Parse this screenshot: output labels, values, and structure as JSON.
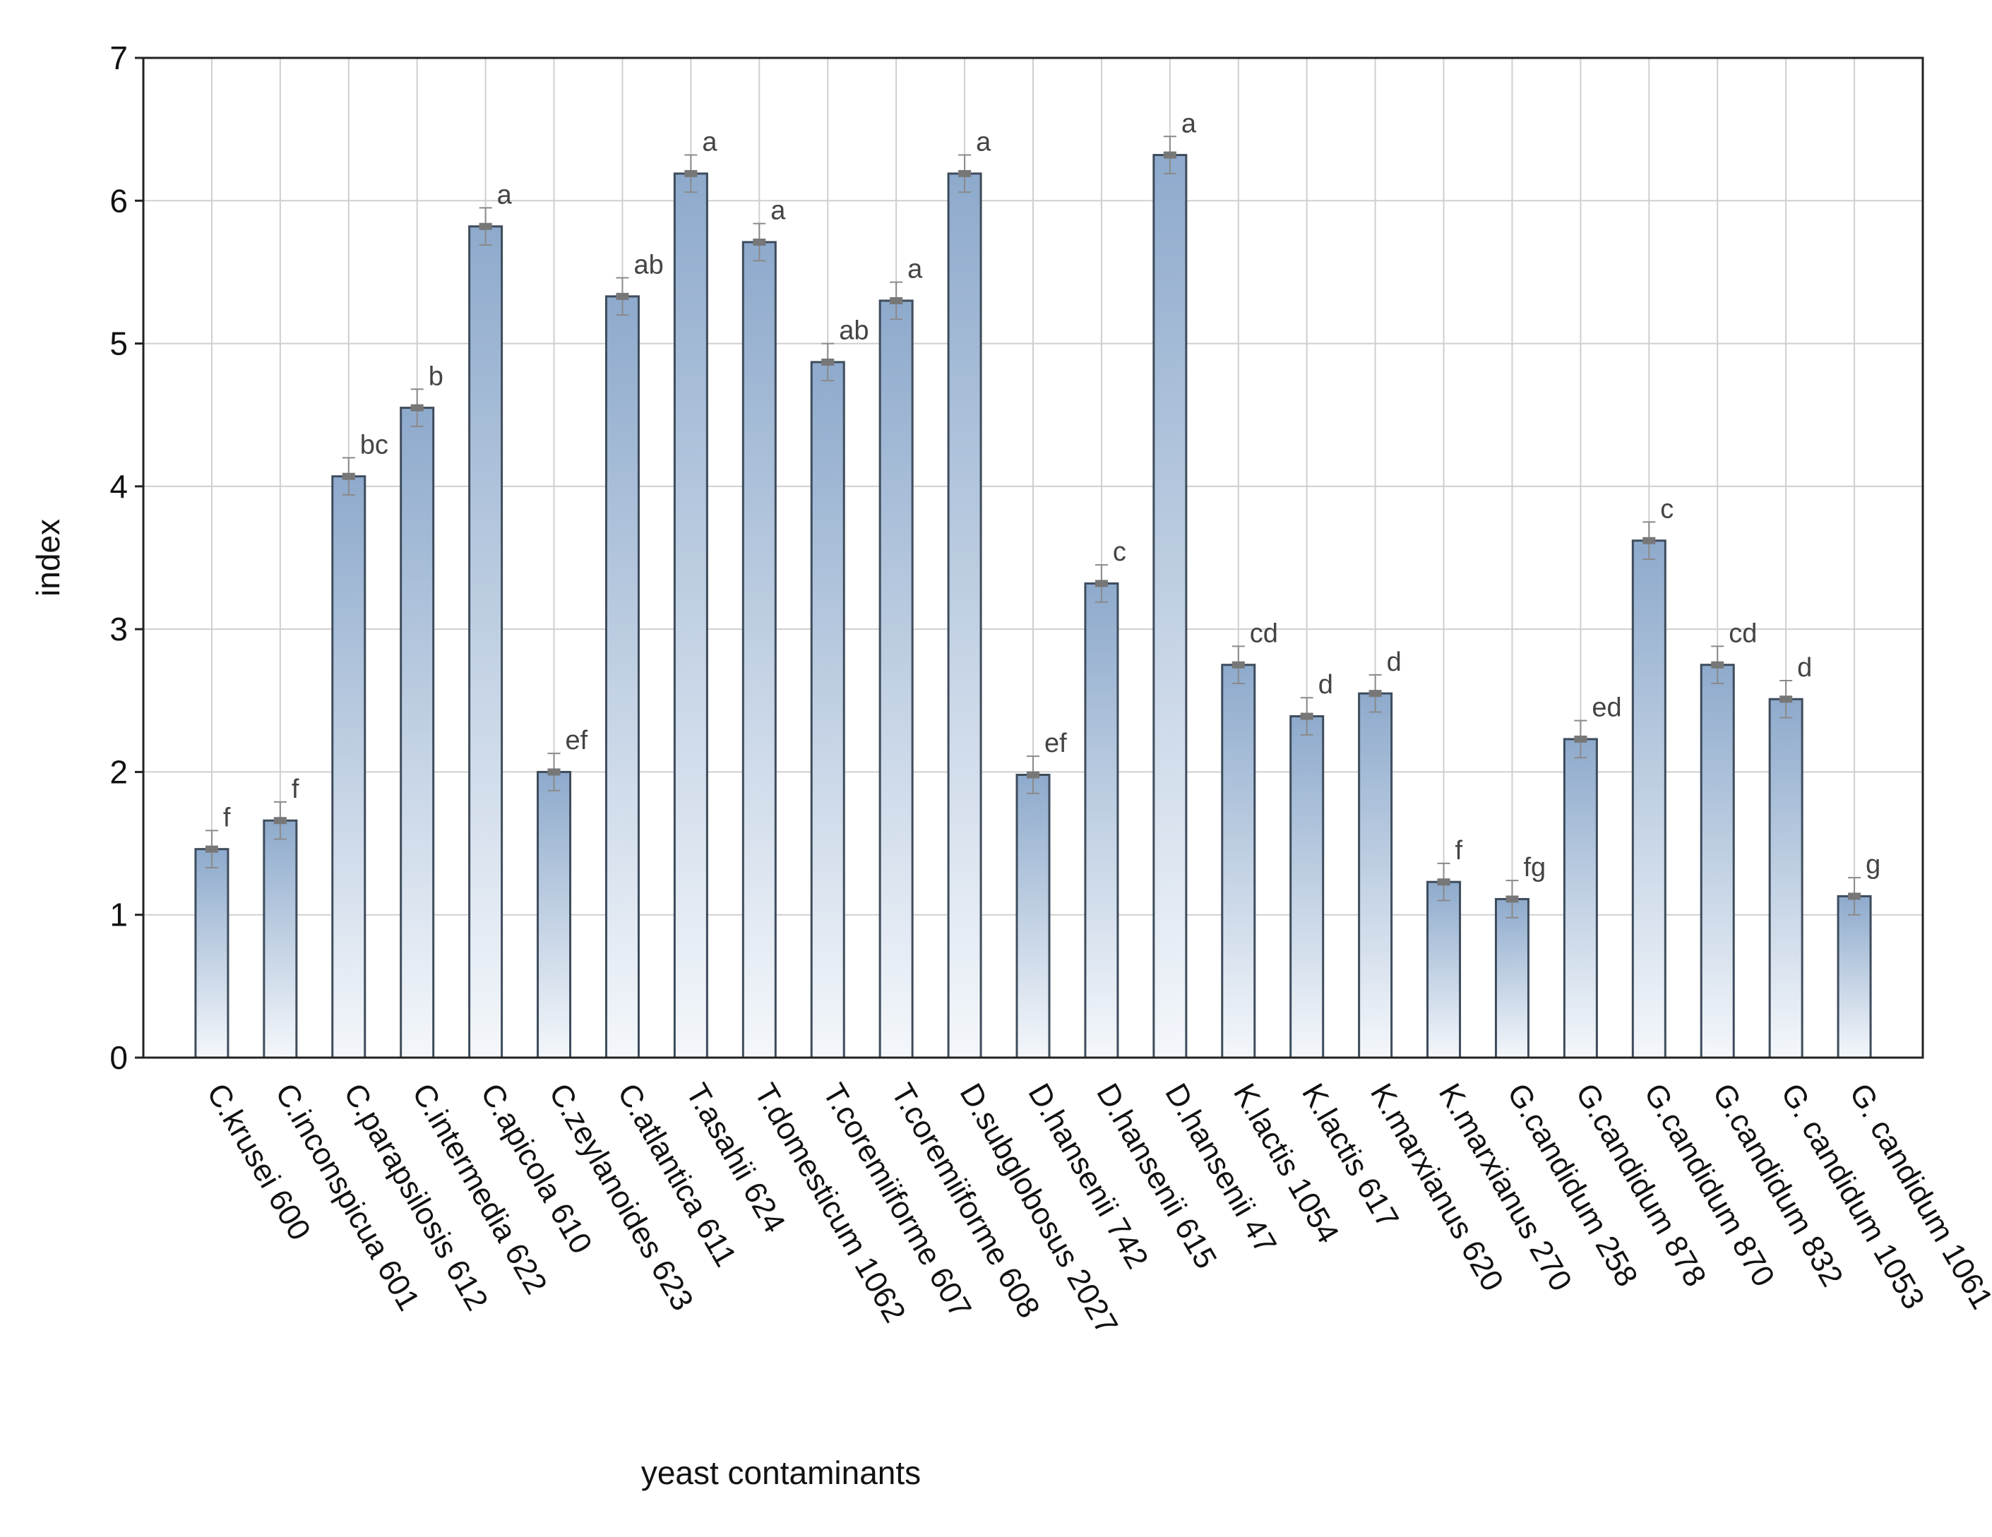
{
  "chart_data": {
    "type": "bar",
    "title": "",
    "xlabel": "yeast contaminants",
    "ylabel": "index",
    "ylim": [
      0,
      7
    ],
    "yticks": [
      0,
      1,
      2,
      3,
      4,
      5,
      6,
      7
    ],
    "grid": true,
    "categories": [
      "C.krusei 600",
      "C.inconspicua 601",
      "C.parapsilosis 612",
      "C.intermedia 622",
      "C.apicola 610",
      "C.zeylanoides 623",
      "C.atlantica 611",
      "T.asahii 624",
      "T.domesticum 1062",
      "T.coremiiforme 607",
      "T.coremiiforme 608",
      "D.subglobosus 2027",
      "D.hansenii 742",
      "D.hansenii 615",
      "D.hansenii 47",
      "K.lactis 1054",
      "K.lactis 617",
      "K.marxianus 620",
      "K.marxianus 270",
      "G.candidum 258",
      "G.candidum 878",
      "G.candidum 870",
      "G.candidum 832",
      "G. candidum 1053",
      "G. candidum 1061"
    ],
    "values": [
      1.46,
      1.66,
      4.07,
      4.55,
      5.82,
      2.0,
      5.33,
      6.19,
      5.71,
      4.87,
      5.3,
      6.19,
      1.98,
      3.32,
      6.32,
      2.75,
      2.39,
      2.55,
      1.23,
      1.11,
      2.23,
      3.62,
      2.75,
      2.51,
      1.13
    ],
    "errors": [
      0.13,
      0.13,
      0.13,
      0.13,
      0.13,
      0.13,
      0.13,
      0.13,
      0.13,
      0.13,
      0.13,
      0.13,
      0.13,
      0.13,
      0.13,
      0.13,
      0.13,
      0.13,
      0.13,
      0.13,
      0.13,
      0.13,
      0.13,
      0.13,
      0.13
    ],
    "letters": [
      "f",
      "f",
      "bc",
      "b",
      "a",
      "ef",
      "ab",
      "a",
      "a",
      "ab",
      "a",
      "a",
      "ef",
      "c",
      "a",
      "cd",
      "d",
      "d",
      "f",
      "fg",
      "ed",
      "c",
      "cd",
      "d",
      "g"
    ],
    "colors": {
      "bar_top": "#8eaacc",
      "bar_bottom": "#f4f7fb",
      "bar_stroke": "#3e4c5c",
      "grid": "#cfcfcf",
      "error": "#8a8a8a"
    }
  }
}
